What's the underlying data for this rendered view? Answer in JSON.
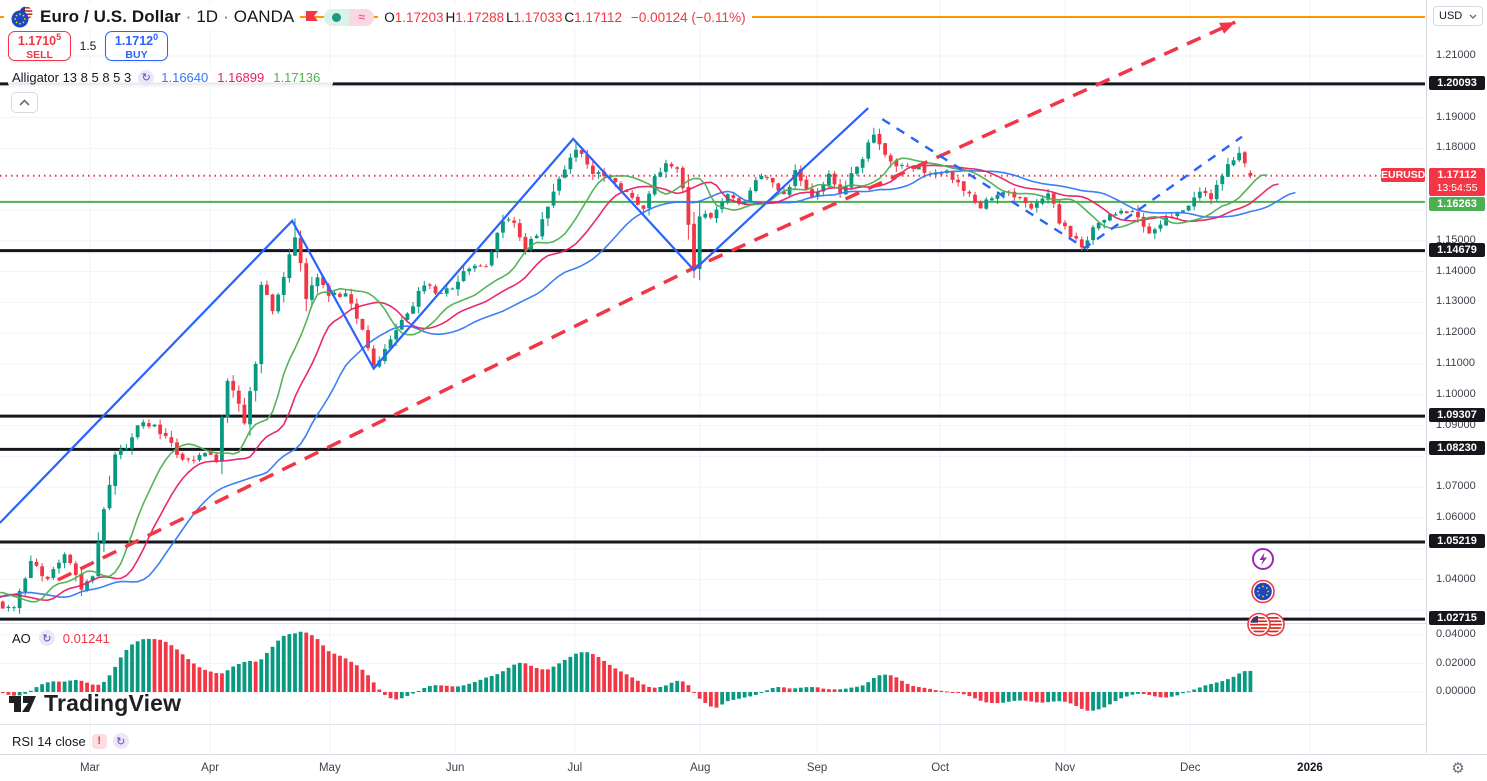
{
  "header": {
    "symbol_name": "Euro / U.S. Dollar",
    "interval": "1D",
    "exchange": "OANDA",
    "ohlc": [
      {
        "k": "O",
        "v": "1.17203"
      },
      {
        "k": "H",
        "v": "1.17288"
      },
      {
        "k": "L",
        "v": "1.17033"
      },
      {
        "k": "C",
        "v": "1.17112"
      }
    ],
    "change": "−0.00124 (−0.11%)"
  },
  "trade": {
    "sell": {
      "price": "1.1710",
      "sup": "5",
      "label": "SELL"
    },
    "spread": "1.5",
    "buy": {
      "price": "1.1712",
      "sup": "0",
      "label": "BUY"
    }
  },
  "alligator_row": {
    "title": "Alligator 13 8 5 8 5 3",
    "values": [
      {
        "v": "1.16640",
        "color": "#3179f5"
      },
      {
        "v": "1.16899",
        "color": "#e91e63"
      },
      {
        "v": "1.17136",
        "color": "#4caf50"
      }
    ]
  },
  "ao_row": {
    "title": "AO",
    "value": "0.01241"
  },
  "rsi_row": {
    "title": "RSI 14 close"
  },
  "watermark": "TradingView",
  "scale": {
    "currency": "USD",
    "symbol_badge": "EURUSD",
    "countdown": "13:54:55",
    "ticks": [
      {
        "label": "1.21000",
        "price": 1.21
      },
      {
        "label": "1.19000",
        "price": 1.19
      },
      {
        "label": "1.18000",
        "price": 1.18
      },
      {
        "label": "1.15000",
        "price": 1.15
      },
      {
        "label": "1.14000",
        "price": 1.14
      },
      {
        "label": "1.13000",
        "price": 1.13
      },
      {
        "label": "1.12000",
        "price": 1.12
      },
      {
        "label": "1.11000",
        "price": 1.11
      },
      {
        "label": "1.10000",
        "price": 1.1
      },
      {
        "label": "1.09000",
        "price": 1.09
      },
      {
        "label": "1.07000",
        "price": 1.07
      },
      {
        "label": "1.06000",
        "price": 1.06
      },
      {
        "label": "1.04000",
        "price": 1.04
      }
    ],
    "ao_ticks": [
      {
        "label": "0.04000",
        "value": 0.04
      },
      {
        "label": "0.02000",
        "value": 0.02
      },
      {
        "label": "0.00000",
        "value": 0.0
      }
    ],
    "black_badges": [
      {
        "label": "1.20093",
        "price": 1.20093
      },
      {
        "label": "1.14679",
        "price": 1.14679
      },
      {
        "label": "1.09307",
        "price": 1.09307
      },
      {
        "label": "1.08230",
        "price": 1.0823
      },
      {
        "label": "1.05219",
        "price": 1.05219
      },
      {
        "label": "1.02715",
        "price": 1.02715
      }
    ],
    "current_badge": {
      "label": "1.17112",
      "price": 1.17112
    },
    "green_badge": {
      "label": "1.16263",
      "price": 1.16263
    }
  },
  "chart_data": {
    "type": "candlestick",
    "symbol": "EURUSD",
    "timeframe": "1D",
    "last_candle": {
      "open": 1.17203,
      "high": 1.17288,
      "low": 1.17033,
      "close": 1.17112
    },
    "levels": {
      "black": [
        1.20093,
        1.14679,
        1.09307,
        1.0823,
        1.05219,
        1.02715
      ],
      "green": 1.16263,
      "orange": 1.22266,
      "current": 1.17112
    },
    "price_path": [
      [
        -45,
        1.053
      ],
      [
        -40,
        1.045
      ],
      [
        -35,
        1.042
      ],
      [
        -30,
        1.031
      ],
      [
        -25,
        1.043
      ],
      [
        -20,
        1.035
      ],
      [
        -15,
        1.024
      ],
      [
        -12,
        1.03
      ],
      [
        -8,
        1.042
      ],
      [
        -4,
        1.032
      ],
      [
        0,
        1.031
      ],
      [
        3,
        1.046
      ],
      [
        6,
        1.04
      ],
      [
        9,
        1.049
      ],
      [
        12,
        1.0375
      ],
      [
        14,
        1.04
      ],
      [
        16,
        1.063
      ],
      [
        18,
        1.0805
      ],
      [
        20,
        1.0835
      ],
      [
        23,
        1.092
      ],
      [
        26,
        1.088
      ],
      [
        29,
        1.081
      ],
      [
        32,
        1.078
      ],
      [
        34,
        1.082
      ],
      [
        36,
        1.079
      ],
      [
        38,
        1.105
      ],
      [
        40,
        1.096
      ],
      [
        41,
        1.0905
      ],
      [
        43,
        1.11
      ],
      [
        44,
        1.136
      ],
      [
        46,
        1.128
      ],
      [
        48,
        1.139
      ],
      [
        50,
        1.152
      ],
      [
        52,
        1.132
      ],
      [
        54,
        1.139
      ],
      [
        56,
        1.133
      ],
      [
        59,
        1.132
      ],
      [
        62,
        1.122
      ],
      [
        64,
        1.109
      ],
      [
        67,
        1.118
      ],
      [
        70,
        1.126
      ],
      [
        73,
        1.136
      ],
      [
        75,
        1.133
      ],
      [
        78,
        1.135
      ],
      [
        81,
        1.142
      ],
      [
        84,
        1.142
      ],
      [
        87,
        1.157
      ],
      [
        89,
        1.155
      ],
      [
        91,
        1.148
      ],
      [
        93,
        1.152
      ],
      [
        96,
        1.166
      ],
      [
        100,
        1.1806
      ],
      [
        103,
        1.172
      ],
      [
        106,
        1.17
      ],
      [
        109,
        1.166
      ],
      [
        112,
        1.16
      ],
      [
        114,
        1.17
      ],
      [
        116,
        1.175
      ],
      [
        118,
        1.1742
      ],
      [
        119,
        1.1665
      ],
      [
        120,
        1.1545
      ],
      [
        121,
        1.1415
      ],
      [
        122,
        1.159
      ],
      [
        124,
        1.157
      ],
      [
        127,
        1.165
      ],
      [
        130,
        1.1618
      ],
      [
        132,
        1.1705
      ],
      [
        134,
        1.17
      ],
      [
        137,
        1.165
      ],
      [
        139,
        1.172
      ],
      [
        142,
        1.164
      ],
      [
        145,
        1.171
      ],
      [
        147,
        1.1655
      ],
      [
        150,
        1.174
      ],
      [
        153,
        1.1845
      ],
      [
        155,
        1.178
      ],
      [
        157,
        1.1745
      ],
      [
        160,
        1.1738
      ],
      [
        163,
        1.1727
      ],
      [
        166,
        1.173
      ],
      [
        169,
        1.166
      ],
      [
        172,
        1.1615
      ],
      [
        175,
        1.165
      ],
      [
        178,
        1.1645
      ],
      [
        181,
        1.1615
      ],
      [
        184,
        1.1655
      ],
      [
        186,
        1.1565
      ],
      [
        188,
        1.152
      ],
      [
        190,
        1.1482
      ],
      [
        193,
        1.1565
      ],
      [
        196,
        1.159
      ],
      [
        199,
        1.159
      ],
      [
        202,
        1.153
      ],
      [
        205,
        1.1575
      ],
      [
        208,
        1.16
      ],
      [
        211,
        1.1665
      ],
      [
        213,
        1.1635
      ],
      [
        216,
        1.1745
      ],
      [
        218,
        1.1795
      ],
      [
        219,
        1.176
      ],
      [
        220,
        1.17112
      ]
    ],
    "wick_extremes": [
      {
        "t": 50,
        "high": 1.1573
      },
      {
        "t": 153,
        "high": 1.1867
      },
      {
        "t": 190,
        "low": 1.1468
      },
      {
        "t": 218,
        "high": 1.1805
      }
    ],
    "alligator": {
      "jaw_period": 13,
      "jaw_shift": 8,
      "teeth_period": 8,
      "teeth_shift": 5,
      "lips_period": 5,
      "lips_shift": 3
    },
    "ao": {
      "fast": 5,
      "slow": 34,
      "last_value": 0.01241
    },
    "trendline_red_dashed": [
      [
        7.8,
        1.0399
      ],
      [
        122.0,
        1.1421
      ],
      [
        217.3,
        1.221
      ]
    ],
    "zigzag_blue_solid": [
      [
        -2.5,
        1.0584
      ],
      [
        49.5,
        1.1565
      ],
      [
        64.0,
        1.1085
      ],
      [
        99.5,
        1.1831
      ],
      [
        121.0,
        1.1405
      ],
      [
        152.0,
        1.1931
      ]
    ],
    "zigzag_blue_dashed": [
      [
        154.5,
        1.1895
      ],
      [
        190.5,
        1.1477
      ],
      [
        218.5,
        1.1838
      ]
    ],
    "x_axis_ticks": [
      {
        "label": "Mar",
        "t": 13.5
      },
      {
        "label": "Apr",
        "t": 34.9
      },
      {
        "label": "May",
        "t": 56.2
      },
      {
        "label": "Jun",
        "t": 78.5
      },
      {
        "label": "Jul",
        "t": 99.8
      },
      {
        "label": "Aug",
        "t": 122.1
      },
      {
        "label": "Sep",
        "t": 142.9
      },
      {
        "label": "Oct",
        "t": 164.8
      },
      {
        "label": "Nov",
        "t": 187.0
      },
      {
        "label": "Dec",
        "t": 209.3
      },
      {
        "label": "2026",
        "t": 230.6,
        "bold": true
      }
    ],
    "colors": {
      "up": "#089981",
      "down": "#f23645",
      "jaw": "#3179f5",
      "teeth": "#e91e63",
      "lips": "#4caf50",
      "zigzag": "#2962ff",
      "trend": "#f23645",
      "level_black": "#15171c",
      "level_green": "#4caf50",
      "level_orange": "#ff9800",
      "current_line": "#f23645",
      "grid": "#f0f3fa"
    }
  }
}
